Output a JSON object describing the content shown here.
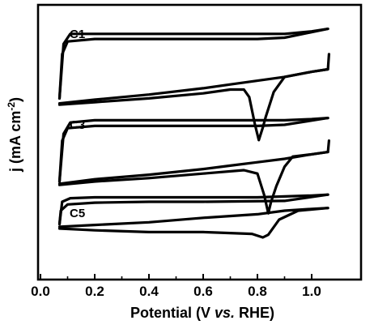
{
  "chart_data": {
    "type": "line",
    "xlabel_parts": [
      "Potential (V ",
      "vs.",
      " RHE)"
    ],
    "ylabel_parts": [
      "j (mA cm",
      "-2",
      ")"
    ],
    "xlim": [
      0.0,
      1.1
    ],
    "x_ticks": [
      0.0,
      0.2,
      0.4,
      0.6,
      0.8,
      1.0
    ],
    "x_tick_labels": [
      "0.0",
      "0.2",
      "0.4",
      "0.6",
      "0.8",
      "1.0"
    ],
    "y_tick_labels_shown": false,
    "grid": false,
    "legend": "none",
    "curve_labels": [
      "C1",
      "C3",
      "C5"
    ],
    "series": [
      {
        "name": "C1",
        "anodic": [
          [
            0.07,
            0.35
          ],
          [
            0.085,
            0.78
          ],
          [
            0.11,
            0.86
          ],
          [
            0.2,
            0.86
          ],
          [
            0.4,
            0.86
          ],
          [
            0.6,
            0.86
          ],
          [
            0.8,
            0.86
          ],
          [
            0.9,
            0.86
          ],
          [
            1.0,
            0.88
          ],
          [
            1.06,
            0.9
          ]
        ],
        "cathodic": [
          [
            1.06,
            0.9
          ],
          [
            0.9,
            0.83
          ],
          [
            0.8,
            0.82
          ],
          [
            0.6,
            0.82
          ],
          [
            0.4,
            0.82
          ],
          [
            0.2,
            0.82
          ],
          [
            0.1,
            0.8
          ],
          [
            0.08,
            0.7
          ],
          [
            0.07,
            0.35
          ]
        ],
        "reverse_anodic": [
          [
            0.07,
            0.31
          ],
          [
            0.2,
            0.34
          ],
          [
            0.4,
            0.38
          ],
          [
            0.6,
            0.43
          ],
          [
            0.7,
            0.46
          ],
          [
            0.8,
            0.49
          ],
          [
            0.9,
            0.52
          ],
          [
            1.0,
            0.56
          ],
          [
            1.06,
            0.58
          ],
          [
            1.064,
            0.7
          ]
        ],
        "orr_scan": [
          [
            1.06,
            0.58
          ],
          [
            1.0,
            0.56
          ],
          [
            0.9,
            0.52
          ],
          [
            0.86,
            0.4
          ],
          [
            0.83,
            0.2
          ],
          [
            0.82,
            0.12
          ],
          [
            0.805,
            0.02
          ],
          [
            0.79,
            0.15
          ],
          [
            0.77,
            0.36
          ],
          [
            0.75,
            0.42
          ],
          [
            0.7,
            0.42
          ],
          [
            0.6,
            0.39
          ],
          [
            0.4,
            0.35
          ],
          [
            0.2,
            0.32
          ],
          [
            0.07,
            0.3
          ]
        ]
      },
      {
        "name": "C3",
        "anodic": [
          [
            0.07,
            0.3
          ],
          [
            0.085,
            0.72
          ],
          [
            0.11,
            0.82
          ],
          [
            0.2,
            0.84
          ],
          [
            0.4,
            0.84
          ],
          [
            0.6,
            0.84
          ],
          [
            0.8,
            0.84
          ],
          [
            0.9,
            0.84
          ],
          [
            1.0,
            0.85
          ],
          [
            1.06,
            0.86
          ]
        ],
        "cathodic": [
          [
            1.06,
            0.86
          ],
          [
            0.9,
            0.8
          ],
          [
            0.8,
            0.79
          ],
          [
            0.6,
            0.79
          ],
          [
            0.4,
            0.79
          ],
          [
            0.2,
            0.79
          ],
          [
            0.1,
            0.77
          ],
          [
            0.08,
            0.66
          ],
          [
            0.07,
            0.3
          ]
        ],
        "reverse_anodic": [
          [
            0.07,
            0.28
          ],
          [
            0.2,
            0.32
          ],
          [
            0.4,
            0.36
          ],
          [
            0.6,
            0.41
          ],
          [
            0.7,
            0.44
          ],
          [
            0.8,
            0.47
          ],
          [
            0.9,
            0.5
          ],
          [
            1.0,
            0.54
          ],
          [
            1.06,
            0.56
          ],
          [
            1.064,
            0.66
          ]
        ],
        "orr_scan": [
          [
            1.06,
            0.56
          ],
          [
            1.0,
            0.54
          ],
          [
            0.93,
            0.52
          ],
          [
            0.9,
            0.43
          ],
          [
            0.87,
            0.26
          ],
          [
            0.85,
            0.12
          ],
          [
            0.84,
            0.02
          ],
          [
            0.825,
            0.18
          ],
          [
            0.8,
            0.37
          ],
          [
            0.75,
            0.4
          ],
          [
            0.6,
            0.37
          ],
          [
            0.4,
            0.33
          ],
          [
            0.2,
            0.3
          ],
          [
            0.07,
            0.27
          ]
        ]
      },
      {
        "name": "C5",
        "anodic": [
          [
            0.07,
            0.45
          ],
          [
            0.08,
            0.7
          ],
          [
            0.11,
            0.74
          ],
          [
            0.2,
            0.75
          ],
          [
            0.4,
            0.75
          ],
          [
            0.6,
            0.75
          ],
          [
            0.8,
            0.75
          ],
          [
            1.0,
            0.77
          ],
          [
            1.06,
            0.78
          ]
        ],
        "cathodic": [
          [
            1.06,
            0.78
          ],
          [
            0.9,
            0.71
          ],
          [
            0.6,
            0.7
          ],
          [
            0.4,
            0.7
          ],
          [
            0.2,
            0.69
          ],
          [
            0.1,
            0.67
          ],
          [
            0.075,
            0.6
          ],
          [
            0.07,
            0.45
          ]
        ],
        "reverse_anodic": [
          [
            0.07,
            0.42
          ],
          [
            0.2,
            0.44
          ],
          [
            0.4,
            0.47
          ],
          [
            0.6,
            0.52
          ],
          [
            0.8,
            0.56
          ],
          [
            0.9,
            0.6
          ],
          [
            1.0,
            0.62
          ],
          [
            1.06,
            0.63
          ]
        ],
        "orr_scan": [
          [
            1.06,
            0.63
          ],
          [
            0.95,
            0.6
          ],
          [
            0.88,
            0.5
          ],
          [
            0.84,
            0.33
          ],
          [
            0.82,
            0.3
          ],
          [
            0.78,
            0.34
          ],
          [
            0.6,
            0.36
          ],
          [
            0.4,
            0.36
          ],
          [
            0.2,
            0.38
          ],
          [
            0.07,
            0.4
          ]
        ]
      }
    ]
  }
}
